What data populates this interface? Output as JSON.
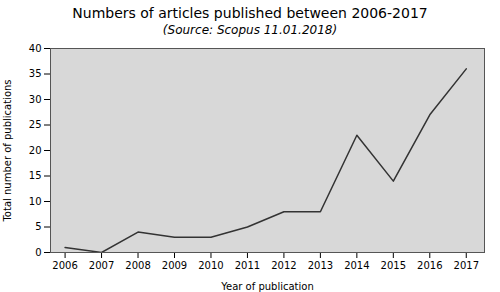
{
  "chart_data": {
    "type": "line",
    "title": "Numbers of articles published between 2006-2017",
    "subtitle": "(Source: Scopus 11.01.2018)",
    "x": [
      2006,
      2007,
      2008,
      2009,
      2010,
      2011,
      2012,
      2013,
      2014,
      2015,
      2016,
      2017
    ],
    "values": [
      1,
      0,
      4,
      3,
      3,
      5,
      8,
      8,
      23,
      14,
      27,
      36
    ],
    "xlabel": "Year of publication",
    "ylabel": "Total number of publications",
    "xlim": [
      2005.6,
      2017.5
    ],
    "xticks": [
      2006,
      2007,
      2008,
      2009,
      2010,
      2011,
      2012,
      2013,
      2014,
      2015,
      2016,
      2017
    ],
    "ylim": [
      0,
      40
    ],
    "yticks": [
      0,
      5,
      10,
      15,
      20,
      25,
      30,
      35,
      40
    ],
    "color": "#333333",
    "grid": false
  }
}
